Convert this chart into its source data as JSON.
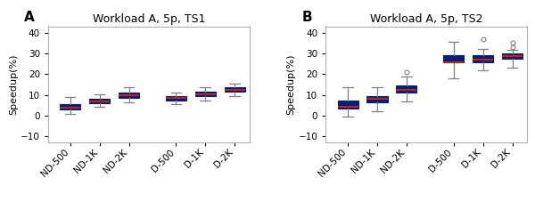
{
  "title_A": "Workload A, 5p, TS1",
  "title_B": "Workload A, 5p, TS2",
  "label_A": "A",
  "label_B": "B",
  "ylabel": "Speedup(%)",
  "categories": [
    "ND-500",
    "ND-1K",
    "ND-2K",
    "D-500",
    "D-1K",
    "D-2K"
  ],
  "ylim": [
    -13,
    43
  ],
  "yticks": [
    -10,
    0,
    10,
    20,
    30,
    40
  ],
  "box_color": "#002080",
  "median_color": "#cc2200",
  "whisker_color": "#808080",
  "cap_color": "#808080",
  "flier_color": "#808080",
  "spine_color": "#b0b0b0",
  "positions": [
    1,
    2,
    3,
    4.6,
    5.6,
    6.6
  ],
  "xlim": [
    0.25,
    7.1
  ],
  "box_width": 0.7,
  "ts1": {
    "ND-500": {
      "q1": 3.0,
      "median": 4.0,
      "q3": 5.5,
      "whislo": 1.0,
      "whishi": 9.0,
      "fliers": []
    },
    "ND-1K": {
      "q1": 6.0,
      "median": 7.0,
      "q3": 8.0,
      "whislo": 4.5,
      "whishi": 10.5,
      "fliers": []
    },
    "ND-2K": {
      "q1": 8.5,
      "median": 10.0,
      "q3": 11.0,
      "whislo": 6.5,
      "whishi": 13.5,
      "fliers": []
    },
    "D-500": {
      "q1": 7.5,
      "median": 8.5,
      "q3": 9.5,
      "whislo": 5.5,
      "whishi": 11.0,
      "fliers": []
    },
    "D-1K": {
      "q1": 9.5,
      "median": 10.5,
      "q3": 11.5,
      "whislo": 7.5,
      "whishi": 13.5,
      "fliers": []
    },
    "D-2K": {
      "q1": 11.5,
      "median": 12.5,
      "q3": 13.5,
      "whislo": 9.5,
      "whishi": 15.5,
      "fliers": []
    }
  },
  "ts2": {
    "ND-500": {
      "q1": 3.5,
      "median": 4.5,
      "q3": 7.5,
      "whislo": -0.5,
      "whishi": 13.5,
      "fliers": []
    },
    "ND-1K": {
      "q1": 6.5,
      "median": 8.0,
      "q3": 9.5,
      "whislo": 2.0,
      "whishi": 13.5,
      "fliers": []
    },
    "ND-2K": {
      "q1": 11.0,
      "median": 12.5,
      "q3": 14.5,
      "whislo": 7.0,
      "whishi": 19.0,
      "fliers": [
        21.0
      ]
    },
    "D-500": {
      "q1": 25.5,
      "median": 25.5,
      "q3": 29.0,
      "whislo": 18.0,
      "whishi": 35.5,
      "fliers": []
    },
    "D-1K": {
      "q1": 25.5,
      "median": 27.0,
      "q3": 29.0,
      "whislo": 22.0,
      "whishi": 32.0,
      "fliers": [
        37.0
      ]
    },
    "D-2K": {
      "q1": 27.5,
      "median": 28.5,
      "q3": 30.0,
      "whislo": 23.0,
      "whishi": 31.5,
      "fliers": [
        33.0,
        35.0
      ]
    }
  }
}
